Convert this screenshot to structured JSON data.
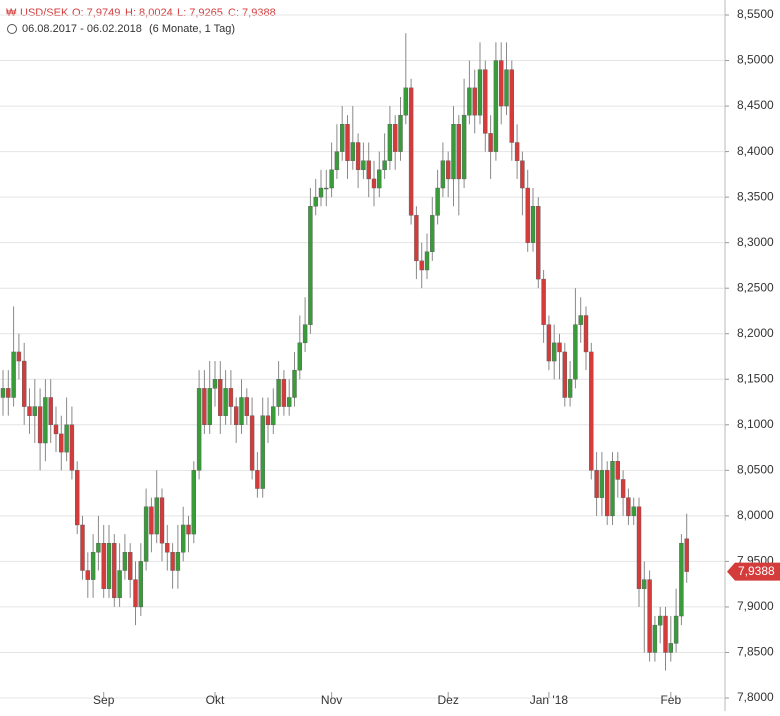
{
  "chart_data": {
    "type": "candlestick",
    "header": {
      "symbol": "USD/SEK",
      "ohlc": [
        "O: 7,9749",
        "H: 8,0024",
        "L: 7,9265",
        "C: 7,9388"
      ],
      "period": "06.08.2017 - 06.02.2018",
      "range": "(6 Monate, 1 Tag)"
    },
    "last_label": "7,9388",
    "up_color": "#3a9b3a",
    "down_color": "#d43c3c",
    "open": [
      8.13,
      8.14,
      8.13,
      8.18,
      8.17,
      8.12,
      8.11,
      8.12,
      8.08,
      8.13,
      8.1,
      8.09,
      8.07,
      8.1,
      8.05,
      7.99,
      7.94,
      7.93,
      7.96,
      7.97,
      7.92,
      7.97,
      7.91,
      7.94,
      7.96,
      7.93,
      7.9,
      7.95,
      8.01,
      7.98,
      8.02,
      7.97,
      7.96,
      7.94,
      7.96,
      7.99,
      7.98,
      8.05,
      8.14,
      8.1,
      8.14,
      8.15,
      8.11,
      8.14,
      8.12,
      8.1,
      8.13,
      8.11,
      8.05,
      8.03,
      8.11,
      8.1,
      8.12,
      8.15,
      8.12,
      8.13,
      8.16,
      8.19,
      8.21,
      8.34,
      8.35,
      8.36,
      8.36,
      8.38,
      8.4,
      8.43,
      8.39,
      8.41,
      8.38,
      8.39,
      8.37,
      8.36,
      8.38,
      8.39,
      8.43,
      8.4,
      8.44,
      8.47,
      8.33,
      8.28,
      8.27,
      8.29,
      8.33,
      8.36,
      8.39,
      8.37,
      8.43,
      8.37,
      8.44,
      8.47,
      8.44,
      8.49,
      8.42,
      8.4,
      8.5,
      8.45,
      8.49,
      8.41,
      8.39,
      8.36,
      8.3,
      8.34,
      8.26,
      8.21,
      8.17,
      8.19,
      8.18,
      8.13,
      8.15,
      8.21,
      8.22,
      8.18,
      8.05,
      8.02,
      8.05,
      8.0,
      8.06,
      8.04,
      8.02,
      8.0,
      8.01,
      7.92,
      7.93,
      7.85,
      7.88,
      7.89,
      7.85,
      7.86,
      7.89,
      7.9749
    ],
    "high": [
      8.16,
      8.16,
      8.23,
      8.2,
      8.19,
      8.14,
      8.15,
      8.14,
      8.15,
      8.15,
      8.12,
      8.11,
      8.13,
      8.12,
      8.06,
      8.0,
      7.96,
      7.98,
      8.0,
      7.99,
      7.99,
      7.98,
      7.97,
      7.98,
      7.97,
      7.95,
      7.97,
      8.03,
      8.02,
      8.05,
      8.03,
      7.99,
      7.97,
      7.99,
      8.01,
      8.0,
      8.06,
      8.16,
      8.16,
      8.17,
      8.17,
      8.17,
      8.16,
      8.16,
      8.13,
      8.15,
      8.14,
      8.13,
      8.07,
      8.13,
      8.13,
      8.14,
      8.17,
      8.16,
      8.15,
      8.18,
      8.22,
      8.24,
      8.36,
      8.37,
      8.38,
      8.38,
      8.41,
      8.43,
      8.45,
      8.44,
      8.45,
      8.42,
      8.41,
      8.41,
      8.39,
      8.4,
      8.42,
      8.45,
      8.44,
      8.46,
      8.53,
      8.48,
      8.34,
      8.3,
      8.31,
      8.35,
      8.38,
      8.41,
      8.4,
      8.45,
      8.44,
      8.48,
      8.5,
      8.49,
      8.52,
      8.5,
      8.44,
      8.52,
      8.52,
      8.52,
      8.5,
      8.43,
      8.4,
      8.38,
      8.36,
      8.35,
      8.27,
      8.22,
      8.21,
      8.2,
      8.19,
      8.17,
      8.25,
      8.24,
      8.23,
      8.19,
      8.07,
      8.07,
      8.06,
      8.07,
      8.07,
      8.05,
      8.03,
      8.02,
      8.02,
      7.95,
      7.94,
      7.89,
      7.9,
      7.9,
      7.89,
      7.92,
      7.98,
      8.0024
    ],
    "low": [
      8.11,
      8.11,
      8.12,
      8.15,
      8.1,
      8.09,
      8.08,
      8.05,
      8.06,
      8.08,
      8.07,
      8.05,
      8.06,
      8.04,
      7.98,
      7.93,
      7.91,
      7.91,
      7.94,
      7.91,
      7.91,
      7.9,
      7.9,
      7.93,
      7.91,
      7.88,
      7.89,
      7.94,
      7.96,
      7.97,
      7.95,
      7.94,
      7.92,
      7.92,
      7.95,
      7.96,
      7.97,
      8.04,
      8.09,
      8.09,
      8.12,
      8.09,
      8.1,
      8.1,
      8.08,
      8.09,
      8.1,
      8.04,
      8.02,
      8.02,
      8.08,
      8.09,
      8.11,
      8.11,
      8.11,
      8.12,
      8.15,
      8.18,
      8.2,
      8.33,
      8.34,
      8.34,
      8.35,
      8.37,
      8.39,
      8.37,
      8.38,
      8.36,
      8.37,
      8.35,
      8.34,
      8.35,
      8.37,
      8.38,
      8.38,
      8.39,
      8.43,
      8.32,
      8.26,
      8.25,
      8.26,
      8.28,
      8.32,
      8.35,
      8.35,
      8.34,
      8.33,
      8.36,
      8.43,
      8.42,
      8.43,
      8.4,
      8.37,
      8.39,
      8.43,
      8.44,
      8.39,
      8.37,
      8.33,
      8.29,
      8.29,
      8.25,
      8.19,
      8.16,
      8.15,
      8.15,
      8.12,
      8.12,
      8.14,
      8.19,
      8.16,
      8.04,
      8.0,
      8.0,
      7.99,
      7.99,
      8.02,
      8.0,
      7.99,
      7.99,
      7.9,
      7.85,
      7.84,
      7.84,
      7.86,
      7.83,
      7.84,
      7.85,
      7.88,
      7.9265
    ],
    "close": [
      8.14,
      8.13,
      8.18,
      8.17,
      8.12,
      8.11,
      8.12,
      8.08,
      8.13,
      8.1,
      8.09,
      8.07,
      8.1,
      8.05,
      7.99,
      7.94,
      7.93,
      7.96,
      7.97,
      7.92,
      7.97,
      7.91,
      7.94,
      7.96,
      7.93,
      7.9,
      7.95,
      8.01,
      7.98,
      8.02,
      7.97,
      7.96,
      7.94,
      7.96,
      7.99,
      7.98,
      8.05,
      8.14,
      8.1,
      8.14,
      8.15,
      8.11,
      8.14,
      8.12,
      8.1,
      8.13,
      8.11,
      8.05,
      8.03,
      8.11,
      8.1,
      8.12,
      8.15,
      8.12,
      8.13,
      8.16,
      8.19,
      8.21,
      8.34,
      8.35,
      8.36,
      8.36,
      8.38,
      8.4,
      8.43,
      8.39,
      8.41,
      8.38,
      8.39,
      8.37,
      8.36,
      8.38,
      8.39,
      8.43,
      8.4,
      8.44,
      8.47,
      8.33,
      8.28,
      8.27,
      8.29,
      8.33,
      8.36,
      8.39,
      8.37,
      8.43,
      8.37,
      8.44,
      8.47,
      8.44,
      8.49,
      8.42,
      8.4,
      8.5,
      8.45,
      8.49,
      8.41,
      8.39,
      8.36,
      8.3,
      8.34,
      8.26,
      8.21,
      8.17,
      8.19,
      8.18,
      8.13,
      8.15,
      8.21,
      8.22,
      8.18,
      8.05,
      8.02,
      8.05,
      8.0,
      8.06,
      8.04,
      8.02,
      8.0,
      8.01,
      7.92,
      7.93,
      7.85,
      7.88,
      7.89,
      7.85,
      7.86,
      7.89,
      7.97,
      7.9388
    ],
    "ylim": [
      7.8,
      8.55
    ],
    "yticks": [
      {
        "value": 7.8,
        "label": "7,8000"
      },
      {
        "value": 7.85,
        "label": "7,8500"
      },
      {
        "value": 7.9,
        "label": "7,9000"
      },
      {
        "value": 7.95,
        "label": "7,9500"
      },
      {
        "value": 8.0,
        "label": "8,0000"
      },
      {
        "value": 8.05,
        "label": "8,0500"
      },
      {
        "value": 8.1,
        "label": "8,1000"
      },
      {
        "value": 8.15,
        "label": "8,1500"
      },
      {
        "value": 8.2,
        "label": "8,2000"
      },
      {
        "value": 8.25,
        "label": "8,2500"
      },
      {
        "value": 8.3,
        "label": "8,3000"
      },
      {
        "value": 8.35,
        "label": "8,3500"
      },
      {
        "value": 8.4,
        "label": "8,4000"
      },
      {
        "value": 8.45,
        "label": "8,4500"
      },
      {
        "value": 8.5,
        "label": "8,5000"
      },
      {
        "value": 8.55,
        "label": "8,5500"
      }
    ],
    "xticks": [
      {
        "value": 19,
        "label": "Sep"
      },
      {
        "value": 40,
        "label": "Okt"
      },
      {
        "value": 62,
        "label": "Nov"
      },
      {
        "value": 84,
        "label": "Dez"
      },
      {
        "value": 103,
        "label": "Jan '18"
      },
      {
        "value": 126,
        "label": "Feb"
      }
    ],
    "grid": true
  }
}
